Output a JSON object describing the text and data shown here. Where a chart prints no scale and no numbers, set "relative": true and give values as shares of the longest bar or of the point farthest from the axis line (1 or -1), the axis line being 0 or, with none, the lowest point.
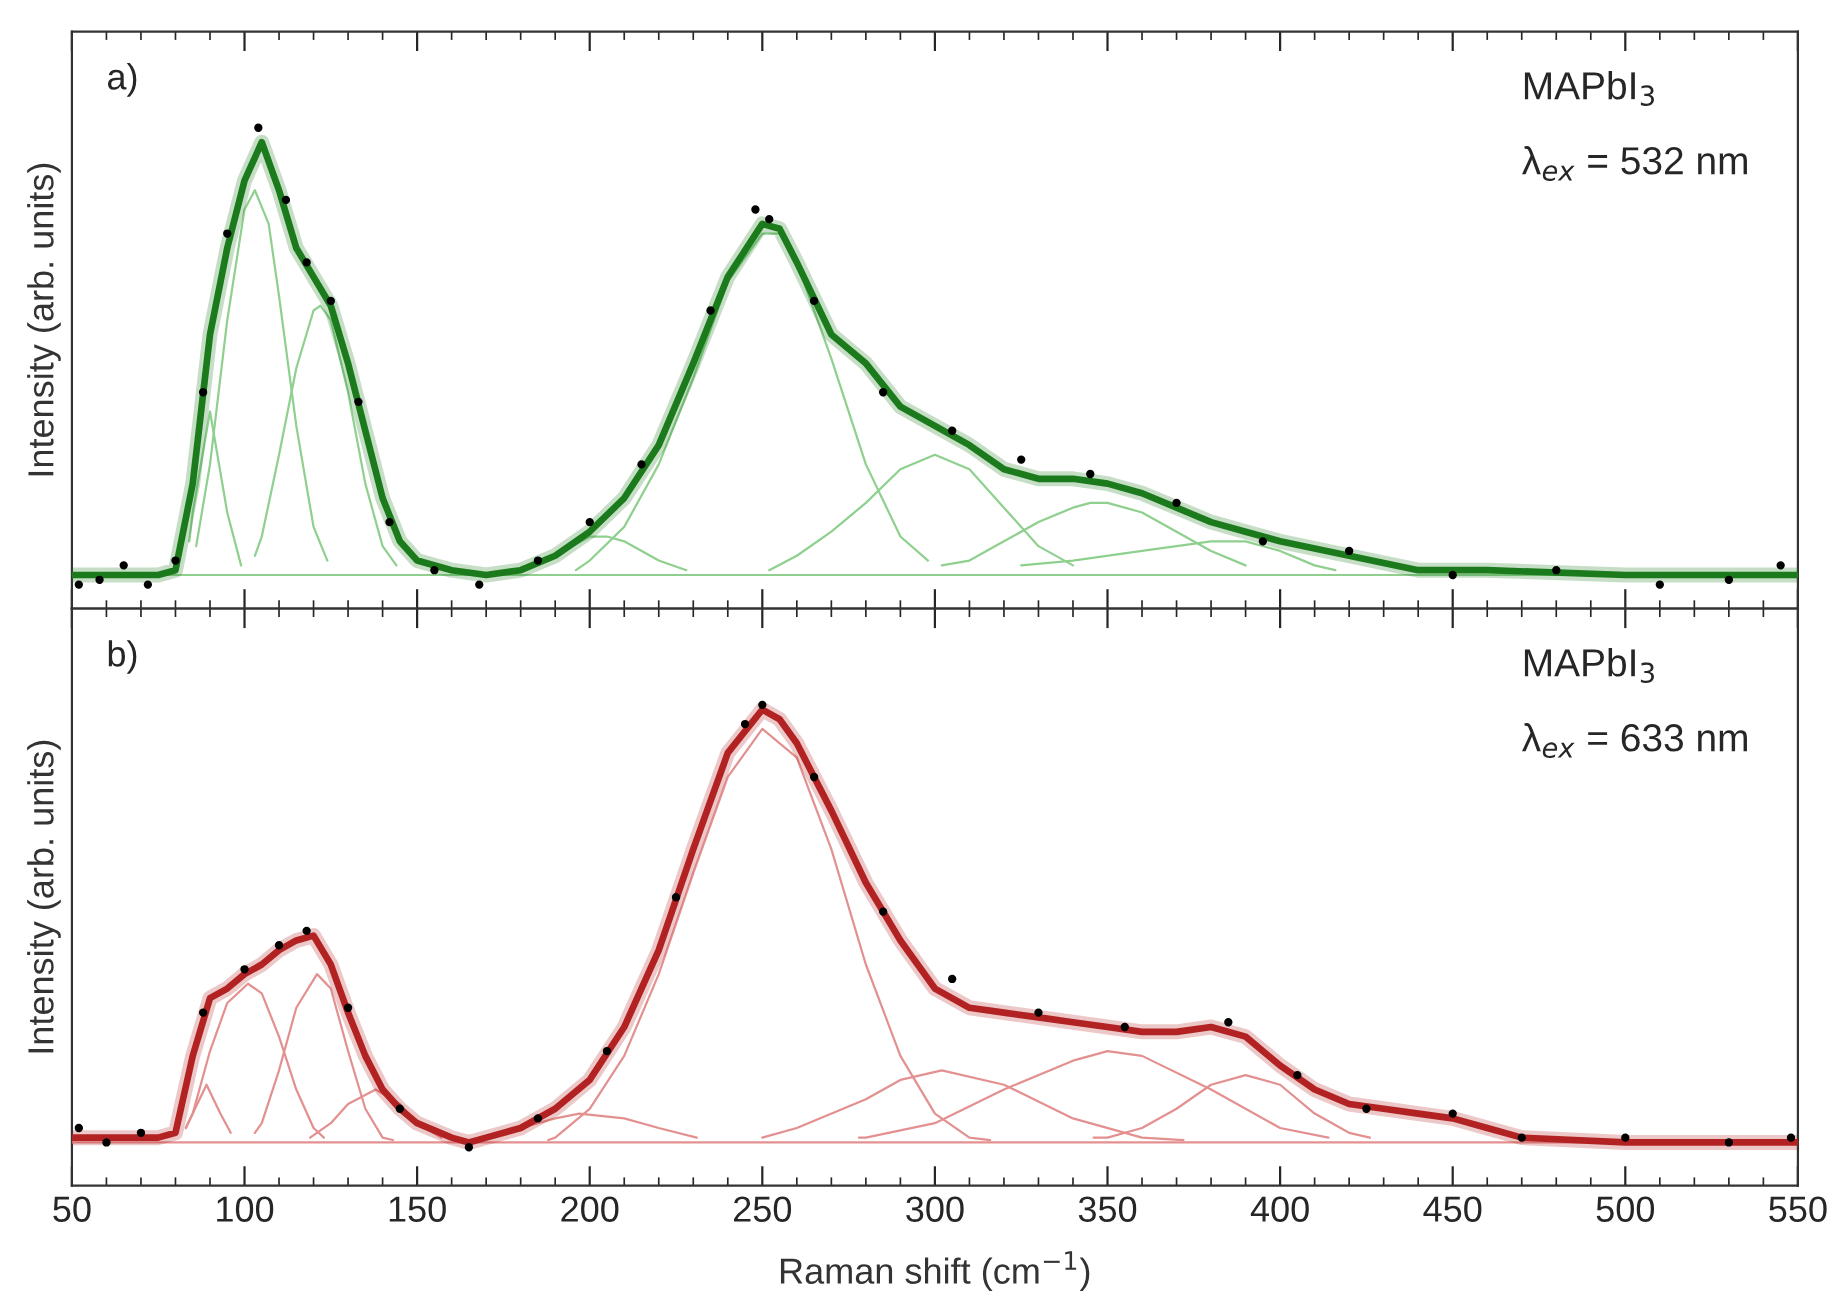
{
  "chart_data": [
    {
      "type": "line",
      "relative": true,
      "ylabel": "Intensity (arb. units)",
      "xlim": [
        50,
        550
      ],
      "xticks": [
        50,
        100,
        150,
        200,
        250,
        300,
        350,
        400,
        450,
        500,
        550
      ],
      "tick_labels": false,
      "grid": false,
      "legend": false,
      "annotations": [
        "a)",
        "MAPbI$_{3}$",
        "λ$_{ex}$ = 532 nm"
      ],
      "series": [
        {
          "color": "#8fd08f",
          "x": [
            50,
            550
          ],
          "values": [
            0.07,
            0.07
          ]
        },
        {
          "color": "#8fd08f",
          "x": [
            84,
            85,
            90,
            95,
            99
          ],
          "values": [
            0.14,
            0.2,
            0.41,
            0.2,
            0.09
          ]
        },
        {
          "color": "#8fd08f",
          "x": [
            86,
            90,
            95,
            100,
            103,
            107,
            110,
            115,
            120,
            124
          ],
          "values": [
            0.13,
            0.3,
            0.6,
            0.83,
            0.87,
            0.8,
            0.65,
            0.38,
            0.17,
            0.1
          ]
        },
        {
          "color": "#8fd08f",
          "x": [
            103,
            105,
            110,
            115,
            120,
            122,
            125,
            130,
            135,
            140,
            144
          ],
          "values": [
            0.11,
            0.15,
            0.32,
            0.5,
            0.62,
            0.63,
            0.6,
            0.45,
            0.26,
            0.13,
            0.09
          ]
        },
        {
          "color": "#8fd08f",
          "x": [
            183,
            190,
            200,
            205,
            210,
            220,
            228
          ],
          "values": [
            0.09,
            0.11,
            0.15,
            0.15,
            0.14,
            0.1,
            0.08
          ]
        },
        {
          "color": "#8fd08f",
          "x": [
            196,
            200,
            210,
            220,
            230,
            240,
            250,
            255,
            260,
            270,
            280,
            290,
            298
          ],
          "values": [
            0.08,
            0.1,
            0.17,
            0.3,
            0.48,
            0.68,
            0.78,
            0.78,
            0.72,
            0.52,
            0.3,
            0.15,
            0.1
          ]
        },
        {
          "color": "#8fd08f",
          "x": [
            252,
            260,
            270,
            280,
            290,
            300,
            310,
            320,
            330,
            340
          ],
          "values": [
            0.08,
            0.11,
            0.16,
            0.22,
            0.29,
            0.32,
            0.29,
            0.21,
            0.13,
            0.09
          ]
        },
        {
          "color": "#8fd08f",
          "x": [
            302,
            310,
            320,
            330,
            340,
            345,
            350,
            360,
            370,
            380,
            390
          ],
          "values": [
            0.09,
            0.1,
            0.14,
            0.18,
            0.21,
            0.22,
            0.22,
            0.2,
            0.16,
            0.12,
            0.09
          ]
        },
        {
          "color": "#8fd08f",
          "x": [
            325,
            340,
            360,
            380,
            390,
            400,
            410,
            416
          ],
          "values": [
            0.09,
            0.1,
            0.12,
            0.14,
            0.14,
            0.12,
            0.09,
            0.08
          ]
        },
        {
          "type": "scatter",
          "color": "#000000",
          "marker": "circle",
          "x": [
            52,
            58,
            65,
            72,
            80,
            88,
            95,
            104,
            112,
            118,
            125,
            133,
            142,
            155,
            168,
            185,
            200,
            215,
            235,
            248,
            252,
            265,
            285,
            305,
            325,
            345,
            370,
            395,
            420,
            450,
            480,
            510,
            530,
            545
          ],
          "values": [
            0.05,
            0.06,
            0.09,
            0.05,
            0.1,
            0.45,
            0.78,
            1.0,
            0.85,
            0.72,
            0.64,
            0.43,
            0.18,
            0.08,
            0.05,
            0.1,
            0.18,
            0.3,
            0.62,
            0.83,
            0.81,
            0.64,
            0.45,
            0.37,
            0.31,
            0.28,
            0.22,
            0.14,
            0.12,
            0.07,
            0.08,
            0.05,
            0.06,
            0.09
          ]
        },
        {
          "color": "#1b7a1b",
          "x": [
            50,
            75,
            80,
            85,
            90,
            95,
            100,
            105,
            110,
            115,
            120,
            125,
            130,
            135,
            140,
            145,
            150,
            160,
            170,
            180,
            190,
            200,
            210,
            220,
            230,
            240,
            250,
            255,
            260,
            270,
            280,
            290,
            300,
            310,
            320,
            330,
            340,
            350,
            360,
            370,
            380,
            390,
            400,
            420,
            440,
            460,
            500,
            550
          ],
          "values": [
            0.07,
            0.07,
            0.08,
            0.26,
            0.57,
            0.75,
            0.89,
            0.97,
            0.87,
            0.75,
            0.69,
            0.63,
            0.51,
            0.37,
            0.23,
            0.14,
            0.1,
            0.08,
            0.07,
            0.08,
            0.11,
            0.16,
            0.23,
            0.34,
            0.51,
            0.69,
            0.8,
            0.79,
            0.72,
            0.57,
            0.51,
            0.42,
            0.38,
            0.34,
            0.29,
            0.27,
            0.27,
            0.26,
            0.24,
            0.21,
            0.18,
            0.16,
            0.14,
            0.11,
            0.08,
            0.08,
            0.07,
            0.07
          ]
        }
      ]
    },
    {
      "type": "line",
      "relative": true,
      "ylabel": "Intensity (arb. units)",
      "xlabel": "Raman shift (cm$^{−1}$)",
      "xlim": [
        50,
        550
      ],
      "xticks": [
        50,
        100,
        150,
        200,
        250,
        300,
        350,
        400,
        450,
        500,
        550
      ],
      "tick_labels": "x",
      "grid": false,
      "legend": false,
      "annotations": [
        "b)",
        "MAPbI$_{3}$",
        "λ$_{ex}$ = 633 nm"
      ],
      "series": [
        {
          "color": "#e39090",
          "x": [
            50,
            550
          ],
          "values": [
            0.09,
            0.09
          ]
        },
        {
          "color": "#e39090",
          "x": [
            83,
            85,
            89,
            93,
            96
          ],
          "values": [
            0.12,
            0.15,
            0.21,
            0.15,
            0.11
          ]
        },
        {
          "color": "#e39090",
          "x": [
            83,
            85,
            90,
            95,
            101,
            105,
            110,
            115,
            120,
            123
          ],
          "values": [
            0.12,
            0.15,
            0.28,
            0.38,
            0.42,
            0.4,
            0.31,
            0.2,
            0.12,
            0.1
          ]
        },
        {
          "color": "#e39090",
          "x": [
            103,
            105,
            110,
            115,
            121,
            125,
            130,
            135,
            140,
            143
          ],
          "values": [
            0.11,
            0.13,
            0.24,
            0.37,
            0.44,
            0.41,
            0.28,
            0.16,
            0.1,
            0.095
          ]
        },
        {
          "color": "#e39090",
          "x": [
            119,
            125,
            130,
            138,
            145,
            150,
            157
          ],
          "values": [
            0.1,
            0.13,
            0.17,
            0.2,
            0.17,
            0.13,
            0.1
          ]
        },
        {
          "color": "#e39090",
          "x": [
            172,
            180,
            190,
            197,
            210,
            220,
            231
          ],
          "values": [
            0.1,
            0.12,
            0.14,
            0.15,
            0.14,
            0.12,
            0.1
          ]
        },
        {
          "color": "#e39090",
          "x": [
            188,
            190,
            200,
            210,
            220,
            230,
            240,
            250,
            260,
            270,
            280,
            290,
            300,
            310,
            316
          ],
          "values": [
            0.095,
            0.1,
            0.16,
            0.27,
            0.44,
            0.65,
            0.85,
            0.95,
            0.89,
            0.7,
            0.46,
            0.27,
            0.15,
            0.1,
            0.095
          ]
        },
        {
          "color": "#e39090",
          "x": [
            250,
            260,
            280,
            290,
            302,
            320,
            340,
            360,
            372
          ],
          "values": [
            0.1,
            0.12,
            0.18,
            0.22,
            0.24,
            0.21,
            0.14,
            0.1,
            0.095
          ]
        },
        {
          "color": "#e39090",
          "x": [
            278,
            280,
            300,
            320,
            340,
            350,
            360,
            380,
            400,
            414
          ],
          "values": [
            0.1,
            0.1,
            0.13,
            0.2,
            0.26,
            0.28,
            0.27,
            0.2,
            0.12,
            0.1
          ]
        },
        {
          "color": "#e39090",
          "x": [
            346,
            350,
            360,
            370,
            380,
            390,
            400,
            410,
            420,
            426
          ],
          "values": [
            0.1,
            0.1,
            0.12,
            0.16,
            0.21,
            0.23,
            0.21,
            0.15,
            0.11,
            0.1
          ]
        },
        {
          "type": "scatter",
          "color": "#000000",
          "marker": "circle",
          "x": [
            52,
            60,
            70,
            88,
            100,
            110,
            118,
            130,
            145,
            165,
            185,
            205,
            225,
            245,
            250,
            265,
            285,
            305,
            330,
            355,
            385,
            405,
            425,
            450,
            470,
            500,
            530,
            548
          ],
          "values": [
            0.12,
            0.09,
            0.11,
            0.36,
            0.45,
            0.5,
            0.53,
            0.37,
            0.16,
            0.08,
            0.14,
            0.28,
            0.6,
            0.96,
            1.0,
            0.85,
            0.57,
            0.43,
            0.36,
            0.33,
            0.34,
            0.23,
            0.16,
            0.15,
            0.1,
            0.1,
            0.09,
            0.1
          ]
        },
        {
          "color": "#b22222",
          "x": [
            50,
            75,
            80,
            85,
            90,
            95,
            100,
            105,
            110,
            115,
            120,
            125,
            130,
            135,
            140,
            145,
            150,
            160,
            165,
            170,
            180,
            190,
            200,
            210,
            220,
            230,
            240,
            250,
            255,
            260,
            270,
            280,
            290,
            300,
            310,
            320,
            330,
            340,
            350,
            360,
            370,
            380,
            390,
            400,
            410,
            420,
            430,
            440,
            450,
            460,
            470,
            500,
            550
          ],
          "values": [
            0.1,
            0.1,
            0.11,
            0.27,
            0.39,
            0.41,
            0.44,
            0.46,
            0.49,
            0.51,
            0.52,
            0.46,
            0.36,
            0.27,
            0.2,
            0.16,
            0.13,
            0.1,
            0.09,
            0.1,
            0.12,
            0.16,
            0.22,
            0.33,
            0.49,
            0.7,
            0.9,
            0.99,
            0.97,
            0.92,
            0.78,
            0.63,
            0.51,
            0.41,
            0.37,
            0.36,
            0.35,
            0.34,
            0.33,
            0.32,
            0.32,
            0.33,
            0.31,
            0.25,
            0.2,
            0.17,
            0.16,
            0.15,
            0.14,
            0.12,
            0.1,
            0.09,
            0.09
          ]
        }
      ]
    }
  ]
}
